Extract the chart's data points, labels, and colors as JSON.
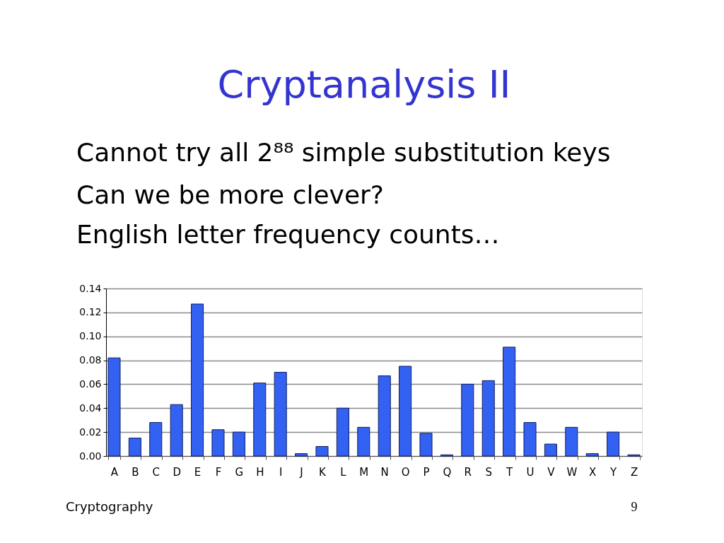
{
  "chart_data": {
    "type": "bar",
    "title": "Cryptanalysis II",
    "categories": [
      "A",
      "B",
      "C",
      "D",
      "E",
      "F",
      "G",
      "H",
      "I",
      "J",
      "K",
      "L",
      "M",
      "N",
      "O",
      "P",
      "Q",
      "R",
      "S",
      "T",
      "U",
      "V",
      "W",
      "X",
      "Y",
      "Z"
    ],
    "values": [
      0.082,
      0.015,
      0.028,
      0.043,
      0.127,
      0.022,
      0.02,
      0.061,
      0.07,
      0.002,
      0.008,
      0.04,
      0.024,
      0.067,
      0.075,
      0.019,
      0.001,
      0.06,
      0.063,
      0.091,
      0.028,
      0.01,
      0.024,
      0.002,
      0.02,
      0.001
    ],
    "color": "#3362f2",
    "ylim": [
      0,
      0.14
    ],
    "yticks": [
      {
        "value": 0,
        "label": "0.00"
      },
      0.02,
      0.04,
      0.06,
      0.08,
      {
        "value": 0.1,
        "label": "0.10"
      },
      0.12,
      0.14
    ],
    "grid": "y",
    "annotations": [
      "Cannot try all 2⁸⁸ simple substitution keys",
      "Can we be more clever?",
      "English letter frequency counts…",
      "Cryptography",
      "9"
    ]
  }
}
